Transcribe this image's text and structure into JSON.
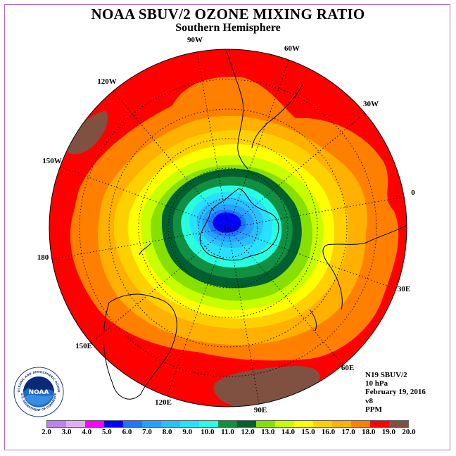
{
  "title": "NOAA SBUV/2 OZONE MIXING RATIO",
  "subtitle": "Southern Hemisphere",
  "info": {
    "instrument": "N19 SBUV/2",
    "level": "10 hPa",
    "date": "February 19, 2016",
    "version": "v8",
    "units": "PPM"
  },
  "logo": {
    "text": "NOAA",
    "ring_text": "NATIONAL OCEANIC AND ATMOSPHERIC ADMINISTRATION",
    "ring_text_bottom": "U.S. DEPARTMENT OF COMMERCE"
  },
  "longitude_labels": [
    "90W",
    "60W",
    "30W",
    "0",
    "30E",
    "60E",
    "90E",
    "120E",
    "150E",
    "180",
    "150W",
    "120W"
  ],
  "legend": {
    "ticks": [
      "2.0",
      "3.0",
      "4.0",
      "5.0",
      "6.0",
      "7.0",
      "8.0",
      "9.0",
      "10.0",
      "11.0",
      "12.0",
      "13.0",
      "14.0",
      "15.0",
      "16.0",
      "17.0",
      "18.0",
      "19.0",
      "20.0"
    ],
    "colors": [
      "#c080f0",
      "#e0b0f0",
      "#ff00ff",
      "#0000ff",
      "#1e78ff",
      "#28a0ff",
      "#28c0ff",
      "#28e0ff",
      "#28ffe0",
      "#109040",
      "#006030",
      "#88e000",
      "#c8ff00",
      "#ffff00",
      "#ffd000",
      "#ffb000",
      "#ff8000",
      "#ff0000",
      "#805040"
    ]
  },
  "map_data": {
    "type": "polar-contour",
    "hemisphere": "south",
    "field": "ozone mixing ratio",
    "range": [
      2.0,
      20.0
    ],
    "minimum_region_value_ppm": 5.5,
    "outer_region_value_ppm": 18.5,
    "high_patches_ppm": [
      19.5,
      19.5
    ]
  }
}
